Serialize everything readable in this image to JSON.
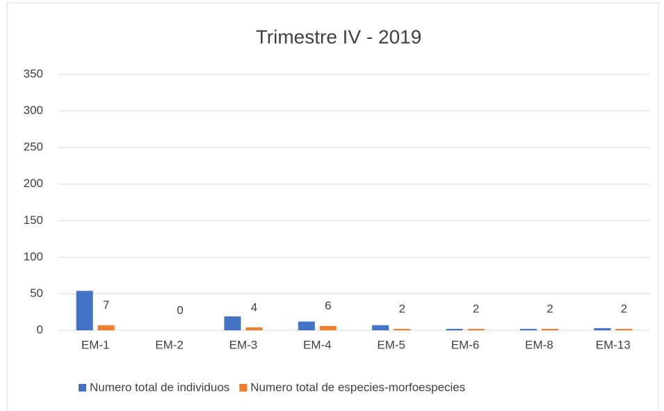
{
  "chart_data": {
    "type": "bar",
    "title": "Trimestre IV - 2019",
    "categories": [
      "EM-1",
      "EM-2",
      "EM-3",
      "EM-4",
      "EM-5",
      "EM-6",
      "EM-8",
      "EM-13"
    ],
    "series": [
      {
        "name": "Numero total de individuos",
        "color": "#4472c4",
        "values": [
          54,
          0,
          19,
          12,
          7,
          2,
          2,
          3
        ]
      },
      {
        "name": "Numero total de especies-morfoespecies",
        "color": "#ed7d31",
        "values": [
          7,
          0,
          4,
          6,
          2,
          2,
          2,
          2
        ],
        "data_labels": true
      }
    ],
    "ylim": [
      0,
      350
    ],
    "yticks": [
      0,
      50,
      100,
      150,
      200,
      250,
      300,
      350
    ],
    "grid": true,
    "legend": "bottom"
  }
}
